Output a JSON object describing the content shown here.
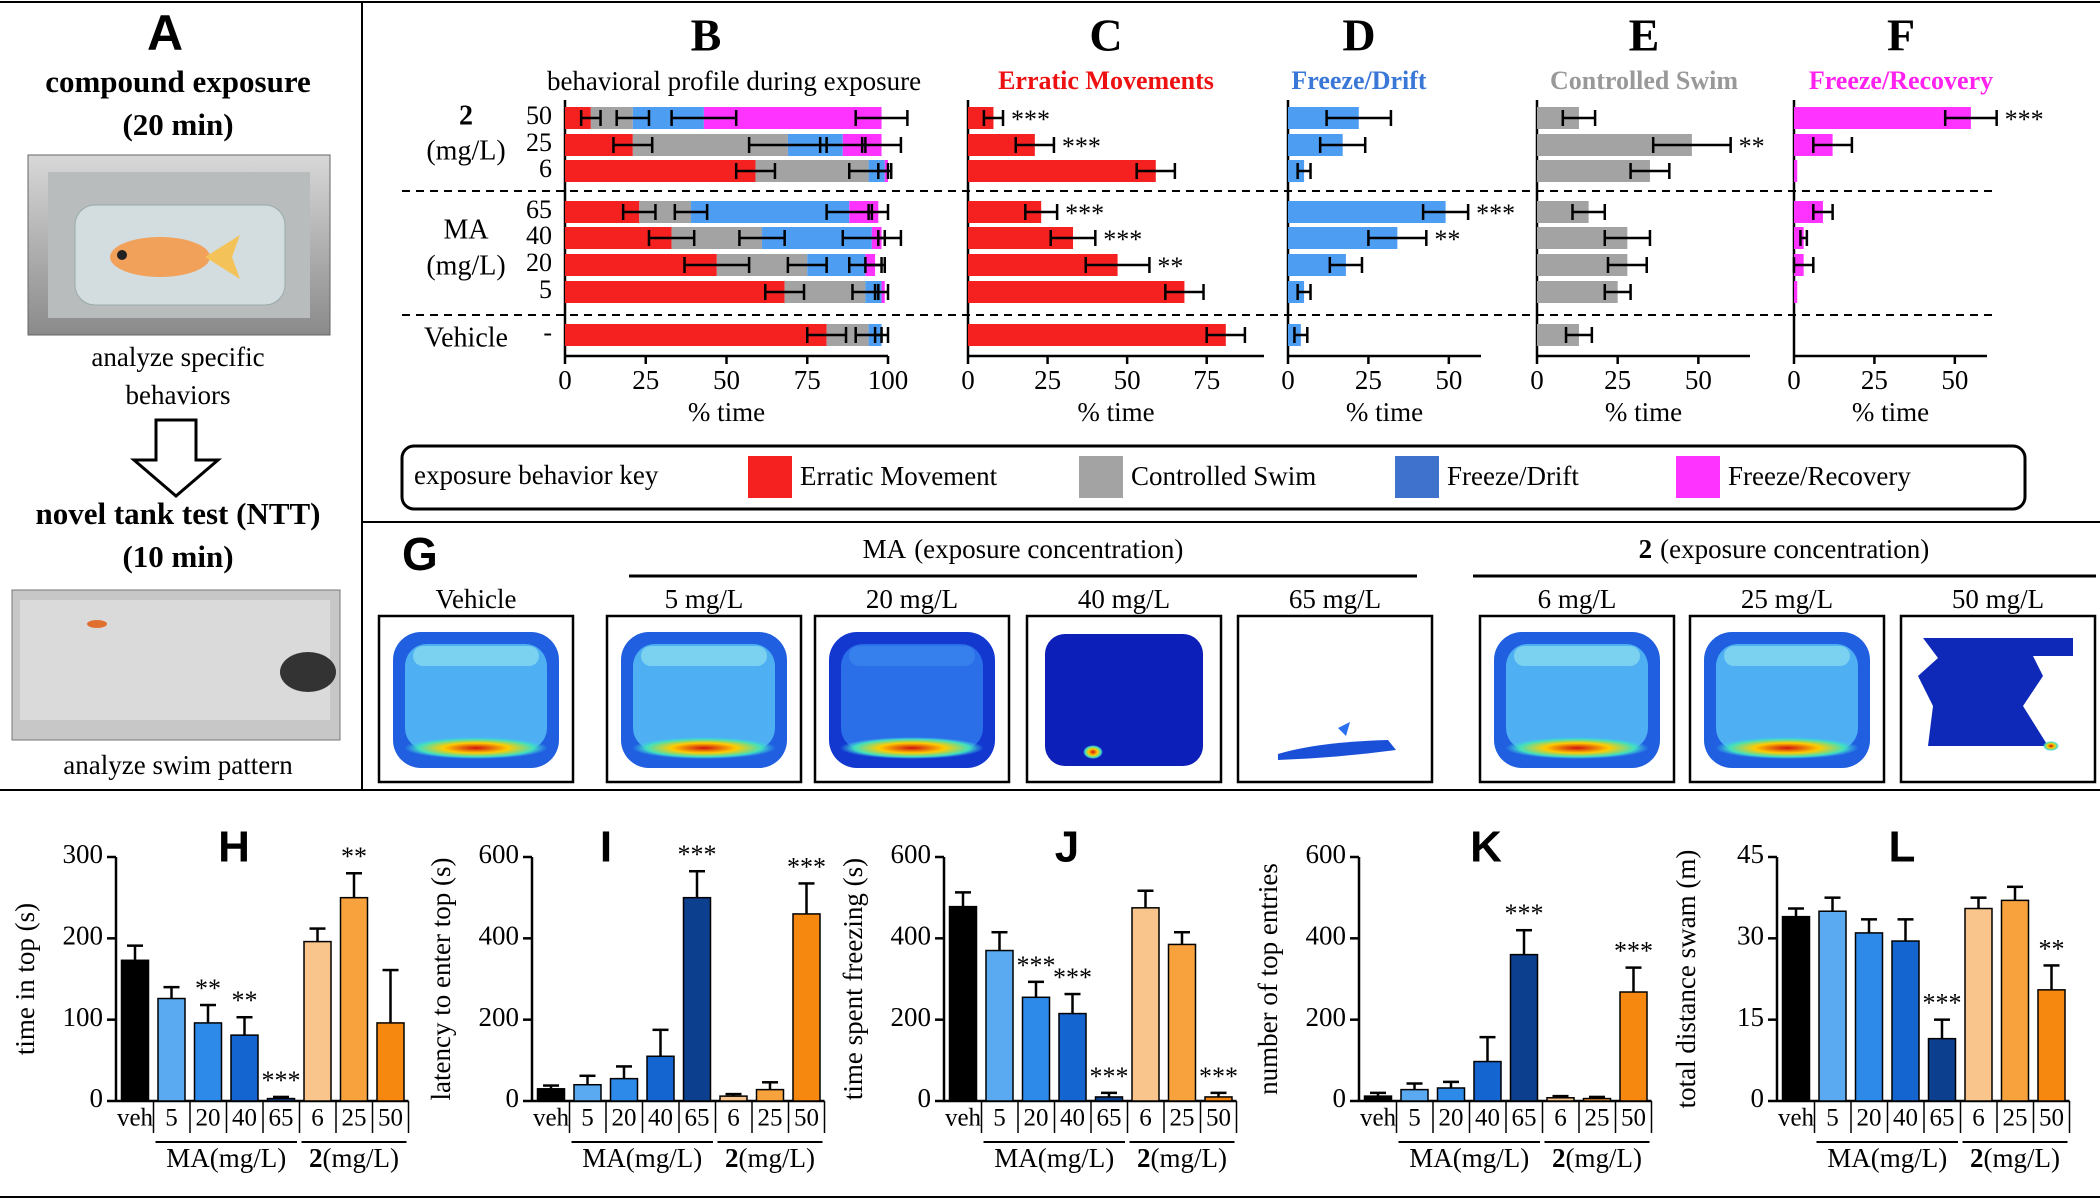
{
  "panel_a": {
    "letter": "A",
    "title": "compound exposure",
    "duration": "(20 min)",
    "caption_lines": [
      "analyze specific",
      "behaviors"
    ],
    "test": "novel tank test (NTT)",
    "test_duration": "(10 min)",
    "test_caption": "analyze swim pattern"
  },
  "chart_data": [
    {
      "type": "behavior-panels",
      "categories": [
        "50",
        "25",
        "6",
        "65",
        "40",
        "20",
        "5",
        "-"
      ],
      "groups": [
        {
          "label": "2",
          "unit": "(mg/L)"
        },
        {
          "label": "MA",
          "unit": "(mg/L)"
        },
        {
          "label": "Vehicle"
        }
      ],
      "key_title": "exposure behavior key",
      "series": [
        {
          "name": "Erratic Movement",
          "color": "#f52020",
          "values": [
            8,
            21,
            59,
            23,
            33,
            47,
            68,
            81
          ],
          "errors": [
            3,
            6,
            6,
            5,
            7,
            10,
            6,
            6
          ],
          "significance": [
            "***",
            "***",
            null,
            "***",
            "***",
            "**",
            null,
            null
          ]
        },
        {
          "name": "Controlled Swim",
          "color": "#a3a3a3",
          "values": [
            13,
            48,
            35,
            16,
            28,
            28,
            25,
            13
          ],
          "errors": [
            5,
            12,
            6,
            5,
            7,
            6,
            4,
            4
          ],
          "significance": [
            null,
            "**",
            null,
            null,
            null,
            null,
            null,
            null
          ]
        },
        {
          "name": "Freeze/Drift",
          "color": "#4d9ef2",
          "values": [
            22,
            17,
            5,
            49,
            34,
            18,
            5,
            4
          ],
          "errors": [
            10,
            7,
            2,
            7,
            9,
            5,
            2,
            2
          ],
          "significance": [
            null,
            null,
            null,
            "***",
            "**",
            null,
            null,
            null
          ]
        },
        {
          "name": "Freeze/Recovery",
          "color": "#ff33ff",
          "values": [
            55,
            12,
            1,
            9,
            3,
            3,
            1,
            0
          ],
          "errors": [
            8,
            6,
            0,
            3,
            1,
            3,
            0,
            0
          ],
          "significance": [
            "***",
            null,
            null,
            null,
            null,
            null,
            null,
            null
          ]
        }
      ],
      "panels": [
        {
          "letter": "B",
          "subtitle": "behavioral profile during exposure",
          "xlim": [
            0,
            100
          ],
          "xticks": [
            0,
            25,
            50,
            75,
            100
          ],
          "xlabel": "% time"
        },
        {
          "letter": "C",
          "title": "Erratic Movements",
          "title_color": "#ee1111",
          "xlim": [
            0,
            93
          ],
          "xticks": [
            0,
            25,
            50,
            75
          ],
          "xlabel": "% time"
        },
        {
          "letter": "D",
          "title": "Freeze/Drift",
          "title_color": "#3a78d8",
          "xlim": [
            0,
            60
          ],
          "xticks": [
            0,
            25,
            50
          ],
          "xlabel": "% time"
        },
        {
          "letter": "E",
          "title": "Controlled Swim",
          "title_color": "#999999",
          "xlim": [
            0,
            66
          ],
          "xticks": [
            0,
            25,
            50
          ],
          "xlabel": "% time"
        },
        {
          "letter": "F",
          "title": "Freeze/Recovery",
          "title_color": "#ff22ee",
          "xlim": [
            0,
            60
          ],
          "xticks": [
            0,
            25,
            50
          ],
          "xlabel": "% time"
        }
      ]
    },
    {
      "type": "bar",
      "letter": "H",
      "ylabel": "time in top (s)",
      "ylim": [
        0,
        300
      ],
      "yticks": [
        0,
        100,
        200,
        300
      ],
      "categories": [
        "veh",
        "5",
        "20",
        "40",
        "65",
        "6",
        "25",
        "50"
      ],
      "groups": [
        {
          "label": "MA",
          "unit": "(mg/L)"
        },
        {
          "label": "2",
          "unit": "(mg/L)"
        }
      ],
      "colors": [
        "#000000",
        "#5aaaf2",
        "#2e8ae8",
        "#1565d0",
        "#0c3f8e",
        "#f9c58c",
        "#f7a23c",
        "#f6870f"
      ],
      "values": [
        173,
        126,
        96,
        81,
        3,
        196,
        250,
        96
      ],
      "errors": [
        18,
        14,
        22,
        22,
        2,
        16,
        30,
        65
      ],
      "significance": [
        null,
        null,
        "**",
        "**",
        "***",
        null,
        "**",
        null
      ]
    },
    {
      "type": "bar",
      "letter": "I",
      "ylabel": "latency to enter top (s)",
      "ylim": [
        0,
        600
      ],
      "yticks": [
        0,
        200,
        400,
        600
      ],
      "categories": [
        "veh",
        "5",
        "20",
        "40",
        "65",
        "6",
        "25",
        "50"
      ],
      "groups": [
        {
          "label": "MA",
          "unit": "(mg/L)"
        },
        {
          "label": "2",
          "unit": "(mg/L)"
        }
      ],
      "colors": [
        "#000000",
        "#5aaaf2",
        "#2e8ae8",
        "#1565d0",
        "#0c3f8e",
        "#f9c58c",
        "#f7a23c",
        "#f6870f"
      ],
      "values": [
        30,
        40,
        55,
        110,
        500,
        12,
        28,
        460
      ],
      "errors": [
        8,
        22,
        30,
        65,
        65,
        5,
        18,
        75
      ],
      "significance": [
        null,
        null,
        null,
        null,
        "***",
        null,
        null,
        "***"
      ]
    },
    {
      "type": "bar",
      "letter": "J",
      "ylabel": "time spent freezing (s)",
      "ylim": [
        0,
        600
      ],
      "yticks": [
        0,
        200,
        400,
        600
      ],
      "categories": [
        "veh",
        "5",
        "20",
        "40",
        "65",
        "6",
        "25",
        "50"
      ],
      "groups": [
        {
          "label": "MA",
          "unit": "(mg/L)"
        },
        {
          "label": "2",
          "unit": "(mg/L)"
        }
      ],
      "colors": [
        "#000000",
        "#5aaaf2",
        "#2e8ae8",
        "#1565d0",
        "#0c3f8e",
        "#f9c58c",
        "#f7a23c",
        "#f6870f"
      ],
      "values": [
        478,
        370,
        255,
        215,
        10,
        475,
        385,
        10
      ],
      "errors": [
        35,
        45,
        38,
        48,
        10,
        42,
        30,
        10
      ],
      "significance": [
        null,
        null,
        "***",
        "***",
        "***",
        null,
        null,
        "***"
      ]
    },
    {
      "type": "bar",
      "letter": "K",
      "ylabel": "number of top entries",
      "ylim": [
        0,
        600
      ],
      "yticks": [
        0,
        200,
        400,
        600
      ],
      "categories": [
        "veh",
        "5",
        "20",
        "40",
        "65",
        "6",
        "25",
        "50"
      ],
      "groups": [
        {
          "label": "MA",
          "unit": "(mg/L)"
        },
        {
          "label": "2",
          "unit": "(mg/L)"
        }
      ],
      "colors": [
        "#000000",
        "#5aaaf2",
        "#2e8ae8",
        "#1565d0",
        "#0c3f8e",
        "#f9c58c",
        "#f7a23c",
        "#f6870f"
      ],
      "values": [
        12,
        28,
        32,
        97,
        360,
        8,
        6,
        268
      ],
      "errors": [
        8,
        15,
        15,
        60,
        60,
        4,
        4,
        60
      ],
      "significance": [
        null,
        null,
        null,
        null,
        "***",
        null,
        null,
        "***"
      ]
    },
    {
      "type": "bar",
      "letter": "L",
      "ylabel": "total distance swam (m)",
      "ylim": [
        0,
        45
      ],
      "yticks": [
        0,
        15,
        30,
        45
      ],
      "categories": [
        "veh",
        "5",
        "20",
        "40",
        "65",
        "6",
        "25",
        "50"
      ],
      "groups": [
        {
          "label": "MA",
          "unit": "(mg/L)"
        },
        {
          "label": "2",
          "unit": "(mg/L)"
        }
      ],
      "colors": [
        "#000000",
        "#5aaaf2",
        "#2e8ae8",
        "#1565d0",
        "#0c3f8e",
        "#f9c58c",
        "#f7a23c",
        "#f6870f"
      ],
      "values": [
        34,
        35,
        31,
        29.5,
        11.5,
        35.5,
        37,
        20.5
      ],
      "errors": [
        1.5,
        2.5,
        2.5,
        4,
        3.5,
        2,
        2.5,
        4.5
      ],
      "significance": [
        null,
        null,
        null,
        null,
        "***",
        null,
        null,
        "**"
      ]
    }
  ],
  "panel_g": {
    "letter": "G",
    "groups": [
      {
        "label": "MA",
        "text": "(exposure concentration)"
      },
      {
        "label": "2",
        "text": "(exposure concentration)"
      }
    ],
    "maps": [
      "Vehicle",
      "5 mg/L",
      "20 mg/L",
      "40 mg/L",
      "65 mg/L",
      "6 mg/L",
      "25 mg/L",
      "50 mg/L"
    ]
  }
}
